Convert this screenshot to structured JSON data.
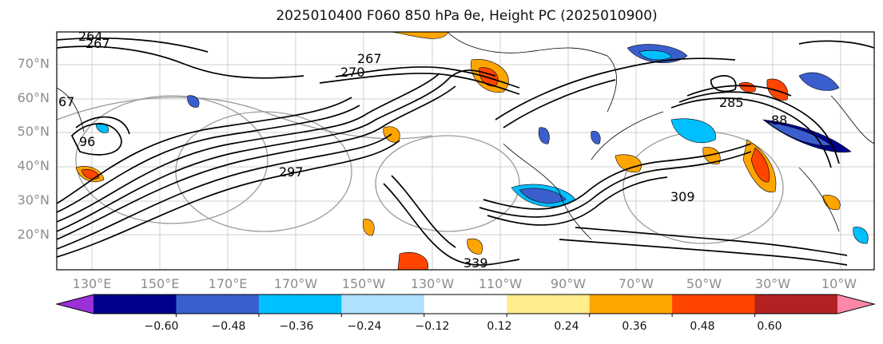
{
  "title": "2025010400 F060 850 hPa θe, Height PC (2025010900)",
  "latitude_labels": [
    "70°N",
    "60°N",
    "50°N",
    "40°N",
    "30°N",
    "20°N"
  ],
  "longitude_labels": [
    "130°E",
    "150°E",
    "170°E",
    "170°W",
    "150°W",
    "130°W",
    "110°W",
    "90°W",
    "70°W",
    "50°W",
    "30°W",
    "10°W"
  ],
  "contour_labels": [
    "264",
    "267",
    "67",
    "267",
    "270",
    "285",
    "297",
    "309",
    "339",
    "88",
    "96"
  ],
  "colorbar": {
    "ticks": [
      "−0.60",
      "−0.48",
      "−0.36",
      "−0.24",
      "−0.12",
      "0.12",
      "0.24",
      "0.36",
      "0.48",
      "0.60"
    ],
    "colors": [
      "#9b30d9",
      "#00008b",
      "#3a5fcd",
      "#00bfff",
      "#b0e2ff",
      "#ffffff",
      "#ffec8b",
      "#ffa500",
      "#ff4500",
      "#b22222",
      "#ff88aa"
    ]
  },
  "colors": {
    "contour_line": "#000000",
    "grey_contour": "#8c8c8c",
    "grid": "#b0b0b0",
    "coastline": "#000000"
  }
}
